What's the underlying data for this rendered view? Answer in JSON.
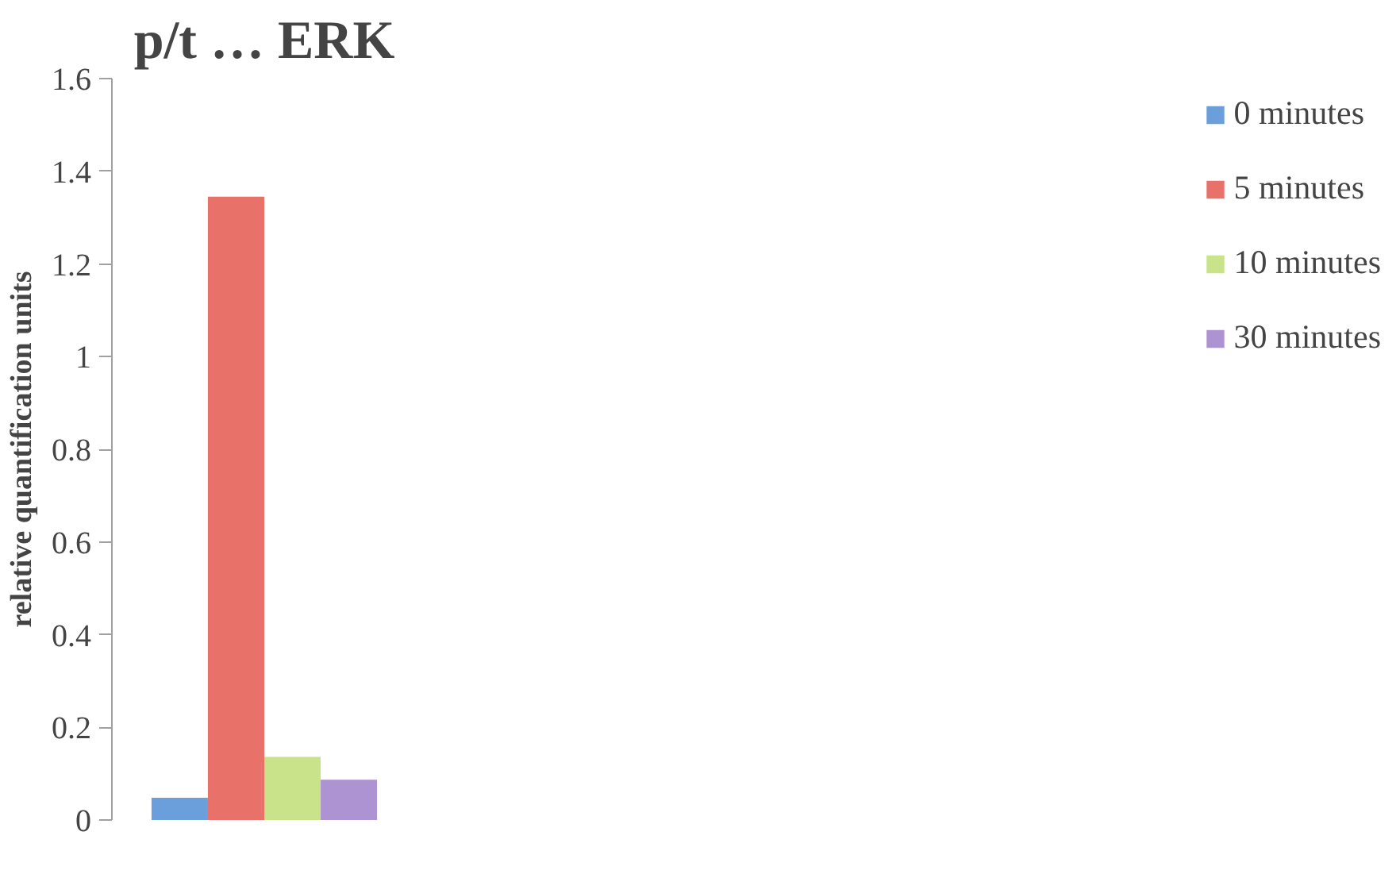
{
  "chart_data": {
    "type": "bar",
    "title": "p/t … ERK",
    "ylabel": "relative quantification units",
    "categories": [
      null
    ],
    "series": [
      {
        "name": "0 minutes",
        "color": "#6a9fdc",
        "values": [
          0.048
        ]
      },
      {
        "name": "5 minutes",
        "color": "#e8716a",
        "values": [
          1.345
        ]
      },
      {
        "name": "10 minutes",
        "color": "#c8e38a",
        "values": [
          0.136
        ]
      },
      {
        "name": "30 minutes",
        "color": "#ae93d2",
        "values": [
          0.087
        ]
      }
    ],
    "ylim": [
      0,
      1.6
    ],
    "yticks": [
      0,
      0.2,
      0.4,
      0.6,
      0.8,
      1,
      1.2,
      1.4,
      1.6
    ],
    "grid": false,
    "legend": "right"
  }
}
